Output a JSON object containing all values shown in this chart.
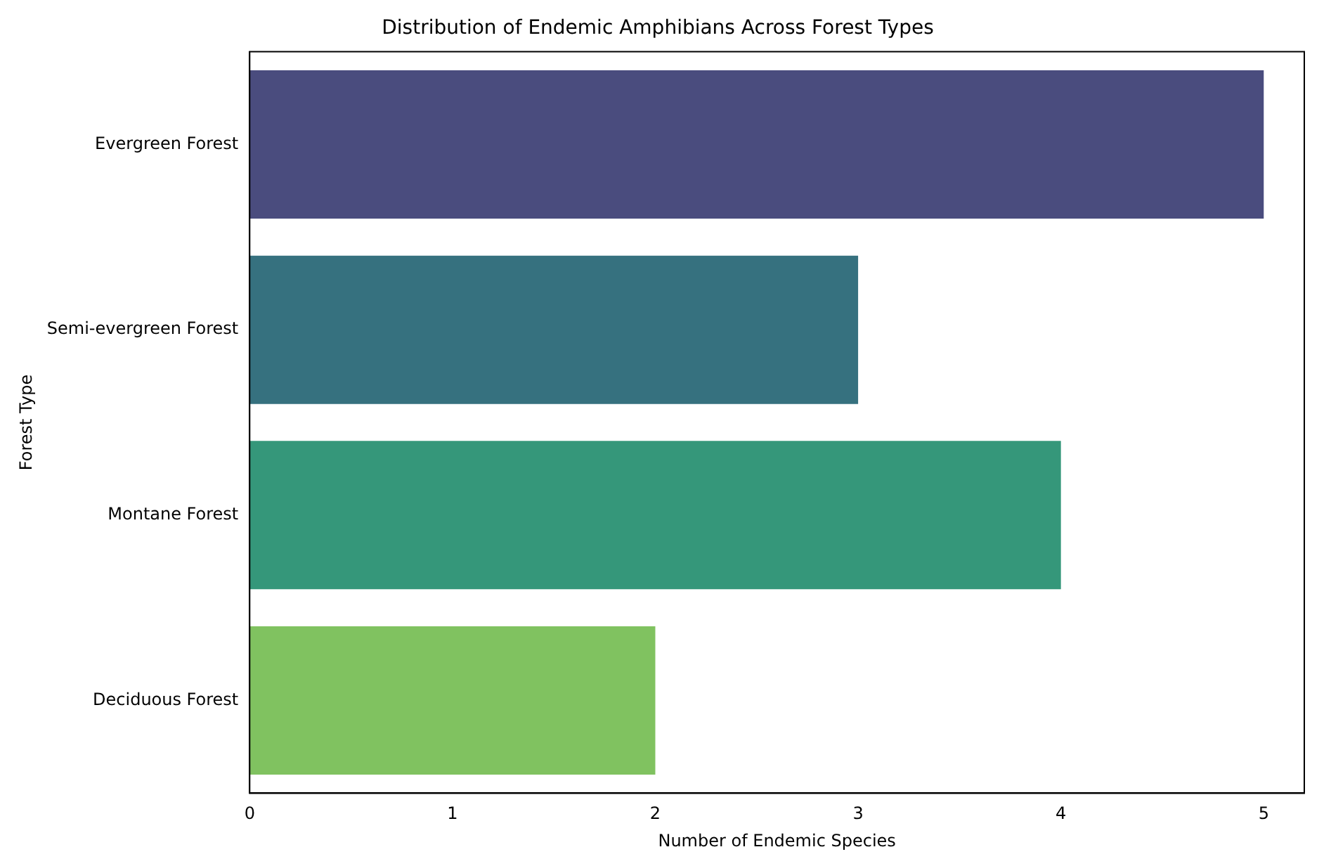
{
  "chart_data": {
    "type": "bar",
    "orientation": "horizontal",
    "title": "Distribution of Endemic Amphibians Across Forest Types",
    "xlabel": "Number of Endemic Species",
    "ylabel": "Forest Type",
    "categories": [
      "Evergreen Forest",
      "Semi-evergreen Forest",
      "Montane Forest",
      "Deciduous Forest"
    ],
    "values": [
      5,
      3,
      4,
      2
    ],
    "colors": [
      "#4a4c7e",
      "#36717f",
      "#35977a",
      "#80c260"
    ],
    "xlim": [
      0,
      5.2
    ],
    "xticks": [
      0,
      1,
      2,
      3,
      4,
      5
    ],
    "grid": false,
    "legend": false
  }
}
